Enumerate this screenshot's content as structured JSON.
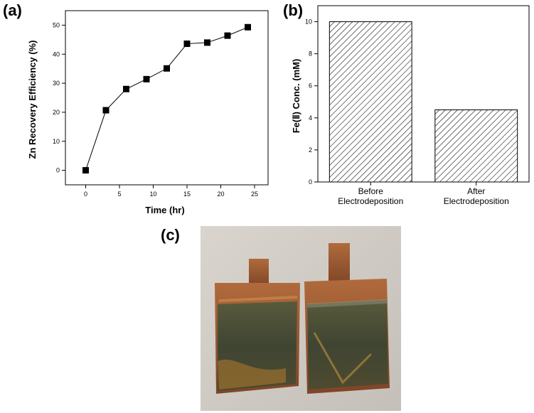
{
  "panels": {
    "a": "(a)",
    "b": "(b)",
    "c": "(c)"
  },
  "chart_data": [
    {
      "type": "line",
      "markers": "filled-square",
      "xlabel": "Time (hr)",
      "ylabel": "Zn Recovery Efficiency (%)",
      "x": [
        0,
        3,
        6,
        9,
        12,
        15,
        18,
        21,
        24
      ],
      "y": [
        0,
        20.7,
        28.0,
        31.4,
        35.1,
        43.6,
        44.0,
        46.4,
        49.3
      ],
      "xlim": [
        -3,
        27
      ],
      "ylim": [
        -5,
        55
      ],
      "xticks": [
        "0",
        "5",
        "10",
        "15",
        "20",
        "25"
      ],
      "yticks": [
        "0",
        "10",
        "20",
        "30",
        "40",
        "50"
      ],
      "grid": false
    },
    {
      "type": "bar",
      "pattern": "diagonal-hatch",
      "ylabel": "Fe(Ⅱ) Conc. (mM)",
      "categories": [
        {
          "line1": "Before",
          "line2": "Electrodeposition"
        },
        {
          "line1": "After",
          "line2": "Electrodeposition"
        }
      ],
      "values": [
        10.0,
        4.5
      ],
      "ylim": [
        0,
        11
      ],
      "yticks": [
        "0",
        "2",
        "4",
        "6",
        "8",
        "10"
      ],
      "grid": false
    }
  ]
}
